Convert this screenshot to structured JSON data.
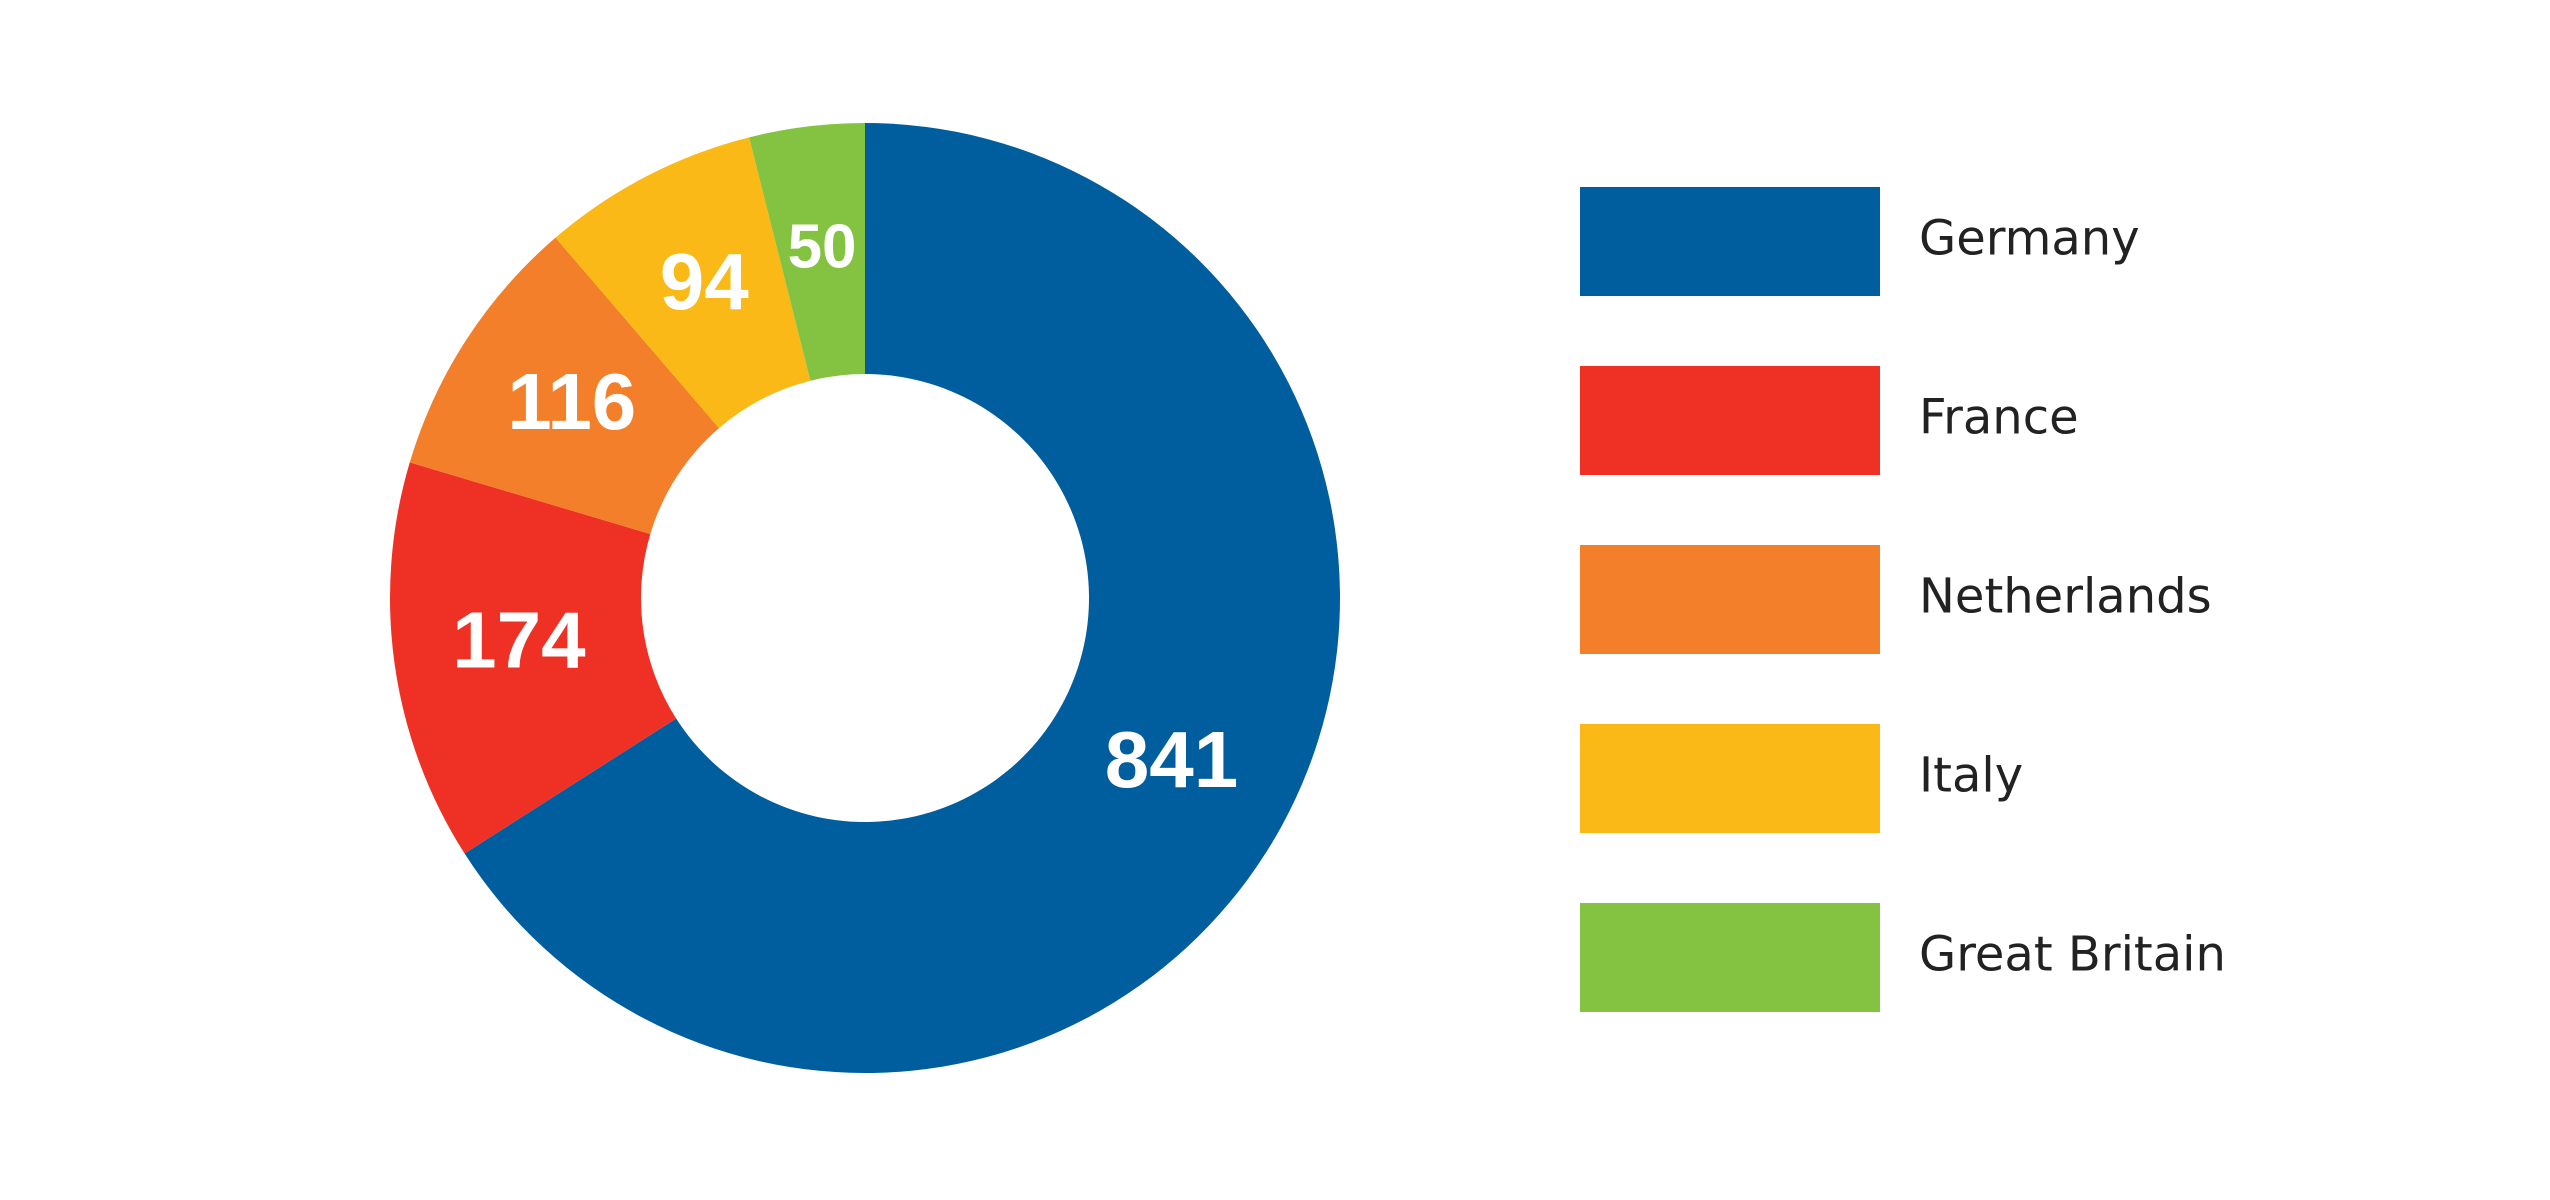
{
  "chart_data": {
    "type": "donut",
    "categories": [
      "Germany",
      "France",
      "Netherlands",
      "Italy",
      "Great Britain"
    ],
    "values": [
      841,
      174,
      116,
      94,
      50
    ],
    "colors": [
      "#005e9e",
      "#ee3124",
      "#f47f2a",
      "#fbb917",
      "#84c341"
    ],
    "legend": "right"
  }
}
